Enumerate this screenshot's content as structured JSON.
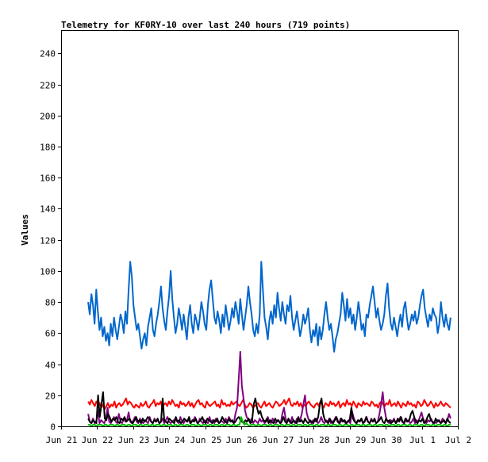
{
  "chart_data": {
    "type": "line",
    "title": "Telemetry for KF0RY-10 over last 240 hours (719 points)",
    "xlabel": "",
    "ylabel": "Values",
    "x_ticks": [
      "Jun 21",
      "Jun 22",
      "Jun 23",
      "Jun 24",
      "Jun 25",
      "Jun 26",
      "Jun 27",
      "Jun 28",
      "Jun 29",
      "Jun 30",
      "Jul 1",
      "Jul 2"
    ],
    "xlim_days": [
      0,
      11
    ],
    "ylim": [
      0,
      255
    ],
    "y_ticks": [
      0,
      20,
      40,
      60,
      80,
      100,
      120,
      140,
      160,
      180,
      200,
      220,
      240
    ],
    "grid": false,
    "legend": "none",
    "data_x_range_days": [
      0.75,
      10.8
    ],
    "series": [
      {
        "color": "#0066cc",
        "values": [
          80,
          72,
          85,
          78,
          66,
          88,
          74,
          62,
          70,
          58,
          64,
          55,
          60,
          52,
          66,
          58,
          70,
          62,
          56,
          64,
          72,
          68,
          60,
          74,
          66,
          88,
          106,
          96,
          78,
          70,
          62,
          66,
          58,
          50,
          56,
          60,
          52,
          64,
          70,
          76,
          62,
          58,
          66,
          72,
          80,
          90,
          76,
          68,
          62,
          74,
          84,
          100,
          82,
          70,
          60,
          66,
          76,
          70,
          62,
          72,
          64,
          56,
          70,
          78,
          66,
          60,
          72,
          68,
          62,
          70,
          80,
          74,
          66,
          62,
          78,
          88,
          94,
          82,
          70,
          66,
          74,
          68,
          60,
          72,
          64,
          78,
          70,
          62,
          68,
          76,
          70,
          80,
          74,
          66,
          82,
          72,
          62,
          70,
          78,
          90,
          80,
          72,
          62,
          58,
          66,
          60,
          72,
          106,
          88,
          70,
          64,
          56,
          68,
          74,
          66,
          78,
          70,
          86,
          76,
          68,
          80,
          72,
          66,
          78,
          74,
          84,
          70,
          62,
          68,
          74,
          66,
          58,
          64,
          72,
          66,
          70,
          76,
          62,
          54,
          62,
          58,
          66,
          52,
          64,
          56,
          62,
          72,
          80,
          70,
          62,
          66,
          58,
          48,
          56,
          60,
          66,
          72,
          86,
          78,
          68,
          82,
          70,
          76,
          66,
          72,
          62,
          70,
          80,
          72,
          62,
          66,
          58,
          72,
          70,
          78,
          84,
          90,
          80,
          70,
          76,
          68,
          62,
          66,
          72,
          84,
          92,
          76,
          66,
          62,
          70,
          64,
          58,
          66,
          72,
          64,
          76,
          80,
          70,
          62,
          66,
          72,
          68,
          74,
          66,
          70,
          78,
          84,
          88,
          76,
          70,
          64,
          72,
          68,
          76,
          72,
          70,
          60,
          66,
          80,
          70,
          64,
          72,
          66,
          62,
          70
        ]
      },
      {
        "color": "#ff0000",
        "values": [
          16,
          14,
          17,
          15,
          13,
          16,
          14,
          15,
          12,
          14,
          11,
          13,
          15,
          12,
          14,
          13,
          16,
          12,
          14,
          15,
          13,
          14,
          16,
          18,
          14,
          16,
          15,
          13,
          12,
          14,
          13,
          12,
          15,
          13,
          14,
          16,
          13,
          12,
          14,
          15,
          17,
          13,
          15,
          14,
          16,
          12,
          14,
          15,
          13,
          16,
          14,
          17,
          15,
          13,
          14,
          12,
          16,
          14,
          15,
          13,
          14,
          16,
          13,
          15,
          12,
          14,
          16,
          17,
          14,
          15,
          13,
          12,
          16,
          14,
          13,
          14,
          15,
          16,
          13,
          14,
          12,
          17,
          14,
          15,
          13,
          14,
          13,
          16,
          14,
          15,
          16,
          14,
          13,
          15,
          17,
          14,
          12,
          13,
          15,
          14,
          12,
          13,
          14,
          15,
          13,
          12,
          14,
          16,
          13,
          14,
          15,
          13,
          12,
          14,
          16,
          15,
          13,
          14,
          15,
          17,
          14,
          16,
          18,
          14,
          13,
          15,
          14,
          16,
          13,
          15,
          12,
          14,
          13,
          15,
          16,
          14,
          13,
          12,
          14,
          15,
          13,
          16,
          14,
          12,
          15,
          14,
          13,
          16,
          14,
          15,
          13,
          14,
          16,
          12,
          14,
          15,
          13,
          17,
          14,
          15,
          13,
          16,
          14,
          12,
          15,
          14,
          13,
          16,
          14,
          15,
          14,
          13,
          16,
          15,
          13,
          14,
          12,
          15,
          16,
          14,
          13,
          15,
          14,
          17,
          13,
          14,
          15,
          13,
          16,
          14,
          12,
          15,
          14,
          13,
          16,
          14,
          15,
          13,
          14,
          12,
          16,
          15,
          13,
          14,
          17,
          15,
          13,
          14,
          16,
          14,
          12,
          15,
          13,
          14,
          16,
          14,
          13,
          15,
          14,
          13,
          12
        ]
      },
      {
        "color": "#800080",
        "values": [
          8,
          3,
          2,
          5,
          2,
          3,
          10,
          2,
          4,
          3,
          2,
          5,
          12,
          3,
          2,
          4,
          6,
          3,
          2,
          8,
          3,
          2,
          5,
          3,
          4,
          9,
          3,
          2,
          4,
          6,
          3,
          2,
          5,
          3,
          2,
          4,
          3,
          2,
          6,
          3,
          2,
          5,
          3,
          4,
          2,
          3,
          5,
          2,
          4,
          6,
          3,
          2,
          3,
          4,
          5,
          3,
          2,
          6,
          3,
          2,
          4,
          3,
          5,
          2,
          3,
          4,
          6,
          3,
          2,
          5,
          3,
          2,
          4,
          3,
          2,
          6,
          3,
          4,
          2,
          5,
          3,
          2,
          4,
          3,
          2,
          5,
          3,
          6,
          4,
          3,
          2,
          8,
          12,
          30,
          48,
          26,
          18,
          10,
          6,
          4,
          3,
          5,
          2,
          4,
          3,
          2,
          5,
          3,
          4,
          2,
          3,
          6,
          3,
          2,
          5,
          3,
          2,
          4,
          3,
          2,
          8,
          12,
          5,
          3,
          4,
          2,
          6,
          3,
          2,
          5,
          3,
          4,
          8,
          14,
          20,
          9,
          5,
          3,
          2,
          4,
          3,
          5,
          2,
          3,
          6,
          3,
          2,
          4,
          3,
          5,
          2,
          3,
          4,
          6,
          3,
          2,
          5,
          3,
          4,
          2,
          3,
          4,
          2,
          10,
          6,
          3,
          2,
          4,
          3,
          5,
          2,
          3,
          6,
          3,
          2,
          5,
          3,
          4,
          2,
          3,
          8,
          14,
          22,
          12,
          6,
          3,
          2,
          4,
          3,
          5,
          2,
          3,
          4,
          6,
          3,
          2,
          5,
          3,
          4,
          2,
          3,
          5,
          2,
          4,
          3,
          6,
          9,
          5,
          3,
          2,
          4,
          3,
          5,
          2,
          3,
          2,
          4,
          3,
          2,
          5,
          3,
          2,
          4,
          8,
          5
        ]
      },
      {
        "color": "#000000",
        "values": [
          5,
          3,
          2,
          4,
          3,
          2,
          20,
          6,
          14,
          22,
          5,
          4,
          8,
          6,
          3,
          5,
          4,
          6,
          3,
          2,
          5,
          4,
          6,
          3,
          4,
          5,
          3,
          2,
          4,
          6,
          3,
          4,
          2,
          5,
          3,
          4,
          6,
          5,
          3,
          2,
          4,
          3,
          5,
          2,
          3,
          18,
          4,
          3,
          2,
          5,
          4,
          3,
          2,
          6,
          3,
          4,
          2,
          3,
          5,
          4,
          3,
          6,
          2,
          4,
          3,
          5,
          2,
          3,
          4,
          6,
          3,
          2,
          5,
          4,
          3,
          2,
          4,
          3,
          5,
          2,
          3,
          6,
          4,
          3,
          2,
          5,
          3,
          4,
          2,
          3,
          5,
          6,
          4,
          3,
          2,
          4,
          3,
          5,
          2,
          3,
          14,
          18,
          12,
          8,
          10,
          6,
          4,
          3,
          5,
          2,
          4,
          3,
          2,
          5,
          3,
          4,
          2,
          3,
          6,
          3,
          2,
          5,
          3,
          2,
          4,
          3,
          2,
          6,
          3,
          4,
          2,
          5,
          3,
          2,
          4,
          3,
          2,
          5,
          3,
          6,
          14,
          18,
          8,
          4,
          3,
          2,
          5,
          3,
          2,
          4,
          6,
          3,
          2,
          5,
          3,
          4,
          2,
          3,
          4,
          12,
          5,
          3,
          2,
          4,
          3,
          5,
          2,
          3,
          6,
          3,
          2,
          4,
          3,
          5,
          2,
          3,
          4,
          6,
          3,
          2,
          5,
          3,
          4,
          2,
          3,
          4,
          2,
          5,
          3,
          6,
          3,
          2,
          5,
          3,
          4,
          8,
          10,
          6,
          3,
          2,
          4,
          3,
          5,
          2,
          3,
          6,
          8,
          4,
          3,
          2,
          5,
          3,
          4,
          2,
          3,
          4,
          2,
          5,
          3,
          2
        ]
      },
      {
        "color": "#00bb00",
        "values": [
          1,
          1,
          0,
          1,
          1,
          0,
          1,
          1,
          1,
          0,
          1,
          1,
          0,
          1,
          1,
          1,
          0,
          1,
          1,
          0,
          1,
          1,
          1,
          0,
          1,
          1,
          0,
          1,
          1,
          1,
          0,
          1,
          1,
          0,
          1,
          1,
          1,
          0,
          1,
          1,
          0,
          1,
          1,
          1,
          0,
          1,
          1,
          0,
          1,
          1,
          1,
          0,
          1,
          1,
          0,
          1,
          1,
          1,
          0,
          1,
          1,
          0,
          1,
          1,
          1,
          0,
          1,
          1,
          0,
          1,
          1,
          1,
          0,
          1,
          1,
          0,
          1,
          1,
          1,
          0,
          1,
          1,
          0,
          1,
          1,
          1,
          0,
          1,
          1,
          0,
          1,
          1,
          6,
          3,
          1,
          2,
          1,
          0,
          1,
          1,
          1,
          0,
          1,
          1,
          0,
          1,
          1,
          1,
          0,
          1,
          1,
          0,
          1,
          1,
          1,
          0,
          1,
          1,
          0,
          1,
          1,
          1,
          0,
          1,
          1,
          0,
          1,
          1,
          1,
          0,
          1,
          1,
          0,
          1,
          1,
          1,
          0,
          1,
          1,
          0,
          1,
          1,
          1,
          0,
          1,
          1,
          0,
          1,
          1,
          1,
          0,
          1,
          1,
          0,
          1,
          1,
          1,
          0,
          1,
          1,
          0,
          1,
          1,
          1,
          0,
          1,
          1,
          0,
          1,
          1,
          1,
          0,
          1,
          1,
          0,
          1,
          1,
          1,
          0,
          1,
          1,
          0,
          1,
          1,
          1,
          0,
          1,
          1,
          0,
          1,
          1,
          1,
          0,
          1,
          1,
          0,
          1,
          1,
          1,
          0,
          1,
          1,
          0,
          1,
          1,
          1,
          0,
          1,
          1,
          0,
          1,
          1,
          1,
          0,
          1,
          1,
          0,
          1,
          1
        ]
      }
    ]
  }
}
